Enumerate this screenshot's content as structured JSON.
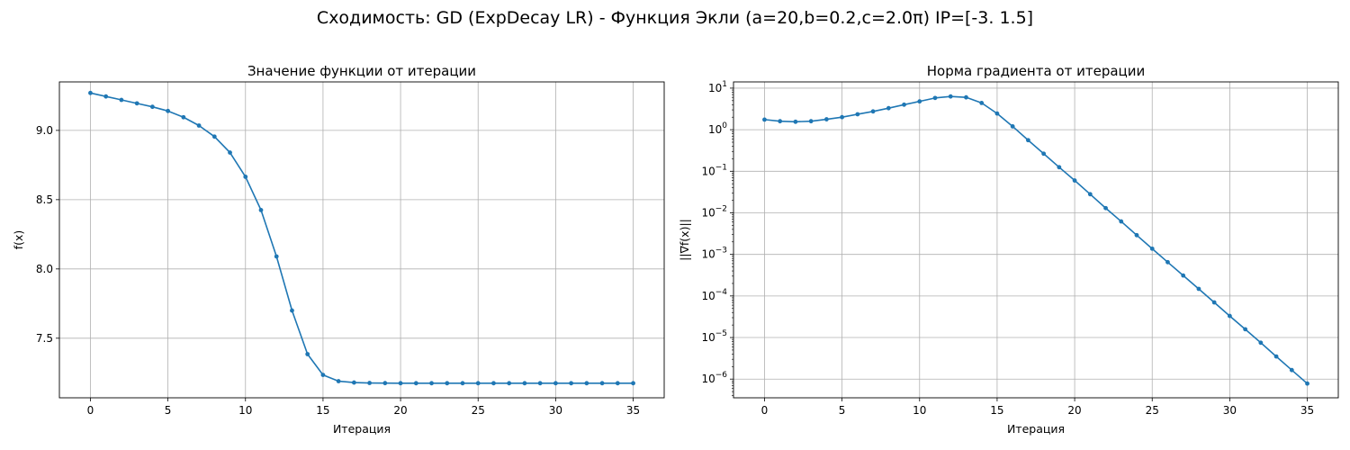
{
  "suptitle": "Сходимость: GD (ExpDecay LR) - Функция Экли (a=20,b=0.2,c=2.0π) IP=[-3.   1.5]",
  "chart_data": [
    {
      "type": "line",
      "title": "Значение функции от итерации",
      "xlabel": "Итерация",
      "ylabel": "f(x)",
      "xlim": [
        -2,
        37
      ],
      "ylim": [
        7.07,
        9.35
      ],
      "yscale": "linear",
      "xticks": [
        0,
        5,
        10,
        15,
        20,
        25,
        30,
        35
      ],
      "yticks": [
        7.5,
        8.0,
        8.5,
        9.0
      ],
      "ytick_labels": [
        "7.5",
        "8.0",
        "8.5",
        "9.0"
      ],
      "grid": true,
      "color": "#1f77b4",
      "marker": "circle",
      "x": [
        0,
        1,
        2,
        3,
        4,
        5,
        6,
        7,
        8,
        9,
        10,
        11,
        12,
        13,
        14,
        15,
        16,
        17,
        18,
        19,
        20,
        21,
        22,
        23,
        24,
        25,
        26,
        27,
        28,
        29,
        30,
        31,
        32,
        33,
        34,
        35
      ],
      "y": [
        9.27,
        9.245,
        9.22,
        9.195,
        9.17,
        9.14,
        9.095,
        9.035,
        8.955,
        8.84,
        8.665,
        8.425,
        8.09,
        7.7,
        7.385,
        7.235,
        7.19,
        7.18,
        7.177,
        7.176,
        7.175,
        7.175,
        7.175,
        7.175,
        7.175,
        7.175,
        7.175,
        7.175,
        7.175,
        7.175,
        7.175,
        7.175,
        7.175,
        7.175,
        7.175,
        7.175
      ]
    },
    {
      "type": "line",
      "title": "Норма градиента от итерации",
      "xlabel": "Итерация",
      "ylabel": "||∇f(x)||",
      "xlim": [
        -2,
        37
      ],
      "ylim": [
        -6.45,
        1.15
      ],
      "yscale": "log",
      "xticks": [
        0,
        5,
        10,
        15,
        20,
        25,
        30,
        35
      ],
      "yticks": [
        -6,
        -5,
        -4,
        -3,
        -2,
        -1,
        0,
        1
      ],
      "ytick_labels": [
        "−6",
        "−5",
        "−4",
        "−3",
        "−2",
        "−1",
        "0",
        "1"
      ],
      "ytick_base": "10",
      "grid": true,
      "color": "#1f77b4",
      "marker": "circle",
      "x": [
        0,
        1,
        2,
        3,
        4,
        5,
        6,
        7,
        8,
        9,
        10,
        11,
        12,
        13,
        14,
        15,
        16,
        17,
        18,
        19,
        20,
        21,
        22,
        23,
        24,
        25,
        26,
        27,
        28,
        29,
        30,
        31,
        32,
        33,
        34,
        35
      ],
      "y": [
        1.75,
        1.6,
        1.55,
        1.6,
        1.78,
        2.0,
        2.35,
        2.75,
        3.3,
        4.0,
        4.8,
        5.8,
        6.3,
        6.0,
        4.4,
        2.45,
        1.2,
        0.56,
        0.265,
        0.125,
        0.06,
        0.028,
        0.013,
        0.0062,
        0.0029,
        0.00137,
        0.00065,
        0.00031,
        0.000148,
        7e-05,
        3.3e-05,
        1.58e-05,
        7.5e-06,
        3.5e-06,
        1.65e-06,
        7.8e-07
      ]
    }
  ]
}
